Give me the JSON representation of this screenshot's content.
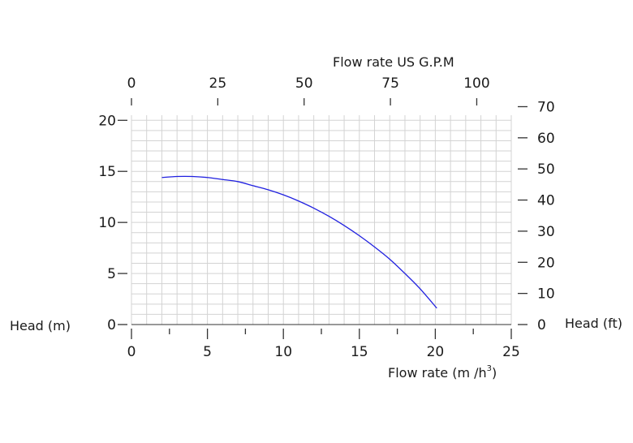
{
  "chart_data": {
    "type": "line",
    "series": [
      {
        "color": "#2020e0",
        "x": [
          2,
          3,
          4,
          5,
          6,
          7,
          8,
          9,
          10,
          11,
          12,
          13,
          14,
          15,
          16,
          17,
          18,
          19,
          20.1
        ],
        "y": [
          14.4,
          14.5,
          14.5,
          14.4,
          14.2,
          14.0,
          13.6,
          13.2,
          12.7,
          12.1,
          11.4,
          10.6,
          9.7,
          8.7,
          7.6,
          6.4,
          5.0,
          3.5,
          1.6
        ]
      }
    ],
    "bottom_axis": {
      "label": "Flow rate  (m /h",
      "label_sup": "3",
      "label_end": ")",
      "range": [
        0,
        25
      ],
      "ticks": [
        "0",
        "5",
        "10",
        "15",
        "20",
        "25"
      ]
    },
    "top_axis": {
      "label": "Flow rate US  G.P.M",
      "range": [
        0,
        110
      ],
      "ticks": [
        "0",
        "25",
        "50",
        "75",
        "100"
      ]
    },
    "left_axis": {
      "label": "Head (m)",
      "range": [
        0,
        20.5
      ],
      "ticks": [
        "0",
        "5",
        "10",
        "15",
        "20"
      ]
    },
    "right_axis": {
      "label": "Head (ft)",
      "ticks": [
        "0",
        "10",
        "20",
        "30",
        "40",
        "50",
        "60",
        "70"
      ]
    },
    "grid": true,
    "colors": {
      "grid": "#d3d3d3",
      "line": "#2020e0",
      "axis": "#333333"
    }
  }
}
